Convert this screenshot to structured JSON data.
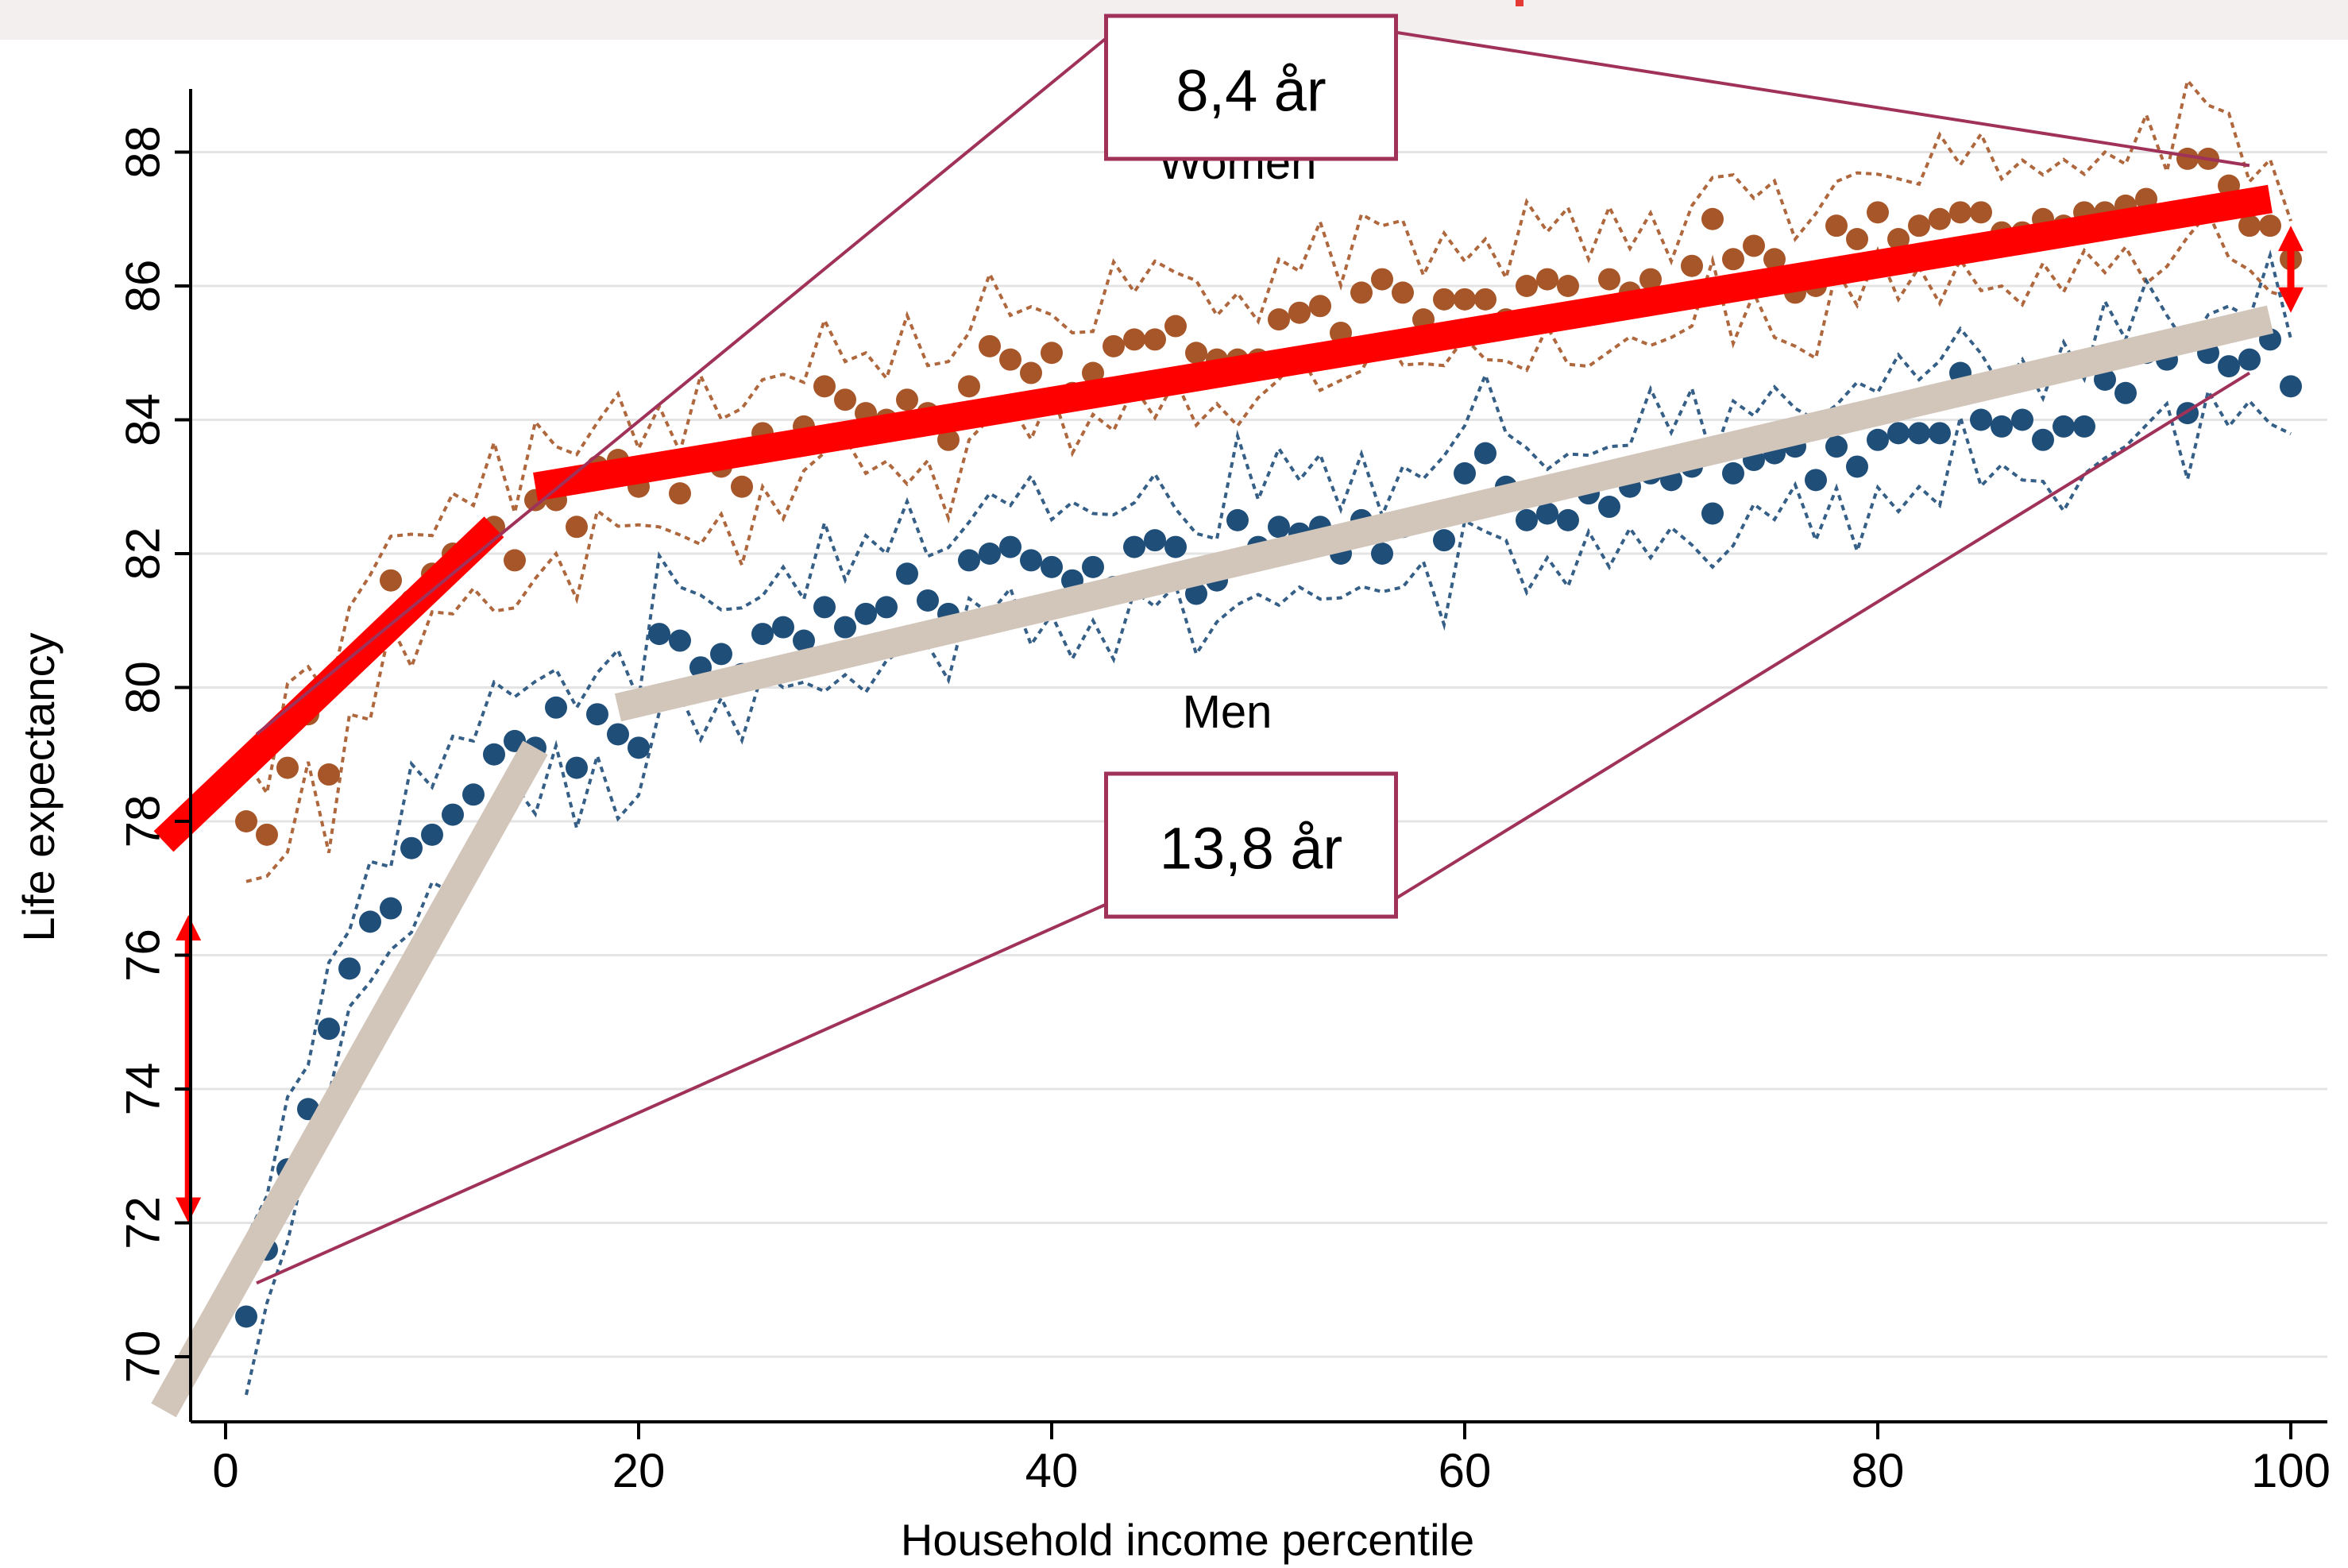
{
  "chart_data": {
    "type": "scatter",
    "xlabel": "Household income percentile",
    "ylabel": "Life expectancy",
    "xlim": [
      -3,
      101
    ],
    "ylim": [
      69.3,
      89.1
    ],
    "x_ticks": [
      0,
      20,
      40,
      60,
      80,
      100
    ],
    "y_ticks": [
      70,
      72,
      74,
      76,
      78,
      80,
      82,
      84,
      86,
      88
    ],
    "grid": "horizontal",
    "series": [
      {
        "name": "Women",
        "color": "#A65628",
        "x": [
          1,
          2,
          3,
          4,
          5,
          6,
          7,
          8,
          9,
          10,
          11,
          12,
          13,
          14,
          15,
          16,
          17,
          18,
          19,
          20,
          21,
          22,
          23,
          24,
          25,
          26,
          27,
          28,
          29,
          30,
          31,
          32,
          33,
          34,
          35,
          36,
          37,
          38,
          39,
          40,
          41,
          42,
          43,
          44,
          45,
          46,
          47,
          48,
          49,
          50,
          51,
          52,
          53,
          54,
          55,
          56,
          57,
          58,
          59,
          60,
          61,
          62,
          63,
          64,
          65,
          66,
          67,
          68,
          69,
          70,
          71,
          72,
          73,
          74,
          75,
          76,
          77,
          78,
          79,
          80,
          81,
          82,
          83,
          84,
          85,
          86,
          87,
          88,
          89,
          90,
          91,
          92,
          93,
          94,
          95,
          96,
          97,
          98,
          99,
          100
        ],
        "values": [
          78.0,
          77.8,
          78.8,
          79.6,
          78.7,
          80.4,
          80.6,
          81.6,
          81.3,
          81.7,
          82.0,
          82.1,
          82.4,
          81.9,
          82.8,
          82.8,
          82.4,
          83.3,
          83.4,
          83.0,
          83.3,
          82.9,
          83.4,
          83.3,
          83.0,
          83.8,
          83.6,
          83.9,
          84.5,
          84.3,
          84.1,
          84.0,
          84.3,
          84.1,
          83.7,
          84.5,
          85.1,
          84.9,
          84.7,
          85.0,
          84.4,
          84.7,
          85.1,
          85.2,
          85.2,
          85.4,
          85.0,
          84.9,
          84.9,
          84.9,
          85.5,
          85.6,
          85.7,
          85.3,
          85.9,
          86.1,
          85.9,
          85.5,
          85.8,
          85.8,
          85.8,
          85.5,
          86.0,
          86.1,
          86.0,
          85.6,
          86.1,
          85.9,
          86.1,
          85.8,
          86.3,
          87.0,
          86.4,
          86.6,
          86.4,
          85.9,
          86.0,
          86.9,
          86.7,
          87.1,
          86.7,
          86.9,
          87.0,
          87.1,
          87.1,
          86.8,
          86.8,
          87.0,
          86.9,
          87.1,
          87.1,
          87.2,
          87.3,
          87.0,
          87.9,
          87.9,
          87.5,
          86.9,
          86.9,
          86.4
        ]
      },
      {
        "name": "Men",
        "color": "#1F4E79",
        "x": [
          1,
          2,
          3,
          4,
          5,
          6,
          7,
          8,
          9,
          10,
          11,
          12,
          13,
          14,
          15,
          16,
          17,
          18,
          19,
          20,
          21,
          22,
          23,
          24,
          25,
          26,
          27,
          28,
          29,
          30,
          31,
          32,
          33,
          34,
          35,
          36,
          37,
          38,
          39,
          40,
          41,
          42,
          43,
          44,
          45,
          46,
          47,
          48,
          49,
          50,
          51,
          52,
          53,
          54,
          55,
          56,
          57,
          58,
          59,
          60,
          61,
          62,
          63,
          64,
          65,
          66,
          67,
          68,
          69,
          70,
          71,
          72,
          73,
          74,
          75,
          76,
          77,
          78,
          79,
          80,
          81,
          82,
          83,
          84,
          85,
          86,
          87,
          88,
          89,
          90,
          91,
          92,
          93,
          94,
          95,
          96,
          97,
          98,
          99,
          100
        ],
        "values": [
          70.6,
          71.6,
          72.8,
          73.7,
          74.9,
          75.8,
          76.5,
          76.7,
          77.6,
          77.8,
          78.1,
          78.4,
          79.0,
          79.2,
          79.1,
          79.7,
          78.8,
          79.6,
          79.3,
          79.1,
          80.8,
          80.7,
          80.3,
          80.5,
          80.2,
          80.8,
          80.9,
          80.7,
          81.2,
          80.9,
          81.1,
          81.2,
          81.7,
          81.3,
          81.1,
          81.9,
          82.0,
          82.1,
          81.9,
          81.8,
          81.6,
          81.8,
          81.5,
          82.1,
          82.2,
          82.1,
          81.4,
          81.6,
          82.5,
          82.1,
          82.4,
          82.3,
          82.4,
          82.0,
          82.5,
          82.0,
          82.4,
          82.5,
          82.2,
          83.2,
          83.5,
          83.0,
          82.5,
          82.6,
          82.5,
          82.9,
          82.7,
          83.0,
          83.2,
          83.1,
          83.3,
          82.6,
          83.2,
          83.4,
          83.5,
          83.6,
          83.1,
          83.6,
          83.3,
          83.7,
          83.8,
          83.8,
          83.8,
          84.7,
          84.0,
          83.9,
          84.0,
          83.7,
          83.9,
          83.9,
          84.6,
          84.4,
          85.0,
          84.9,
          84.1,
          85.0,
          84.8,
          84.9,
          85.2,
          84.5
        ]
      }
    ],
    "series_labels": [
      {
        "series": "Women",
        "text": "Women",
        "x": 49,
        "y": 87.6
      },
      {
        "series": "Men",
        "text": "Men",
        "x": 48.5,
        "y": 79.4
      }
    ],
    "trend_lines": [
      {
        "series": "Women",
        "color": "#FF0000",
        "from": [
          -3,
          77.7
        ],
        "to": [
          13,
          82.4
        ]
      },
      {
        "series": "Women",
        "color": "#FF0000",
        "from": [
          15,
          83.0
        ],
        "to": [
          99,
          87.3
        ]
      },
      {
        "series": "Men",
        "color": "#D2C5BA",
        "from": [
          -3,
          69.2
        ],
        "to": [
          15,
          79.1
        ]
      },
      {
        "series": "Men",
        "color": "#D2C5BA",
        "from": [
          19,
          79.7
        ],
        "to": [
          99,
          85.5
        ]
      }
    ],
    "gap_arrows": [
      {
        "x": -1.8,
        "from": 76.6,
        "to": 72.0,
        "color": "#FF0000"
      },
      {
        "x": 100,
        "from": 86.9,
        "to": 85.6,
        "color": "#FF0000"
      }
    ],
    "annotations": [
      {
        "text": "8,4 år",
        "border_color": "#A0325A",
        "anchor_series": "Women",
        "anchor_points": [
          [
            1.5,
            79.3
          ],
          [
            98,
            87.8
          ]
        ]
      },
      {
        "text": "13,8 år",
        "border_color": "#A0325A",
        "anchor_series": "Men",
        "anchor_points": [
          [
            1.5,
            71.1
          ],
          [
            98,
            84.7
          ]
        ]
      }
    ]
  }
}
